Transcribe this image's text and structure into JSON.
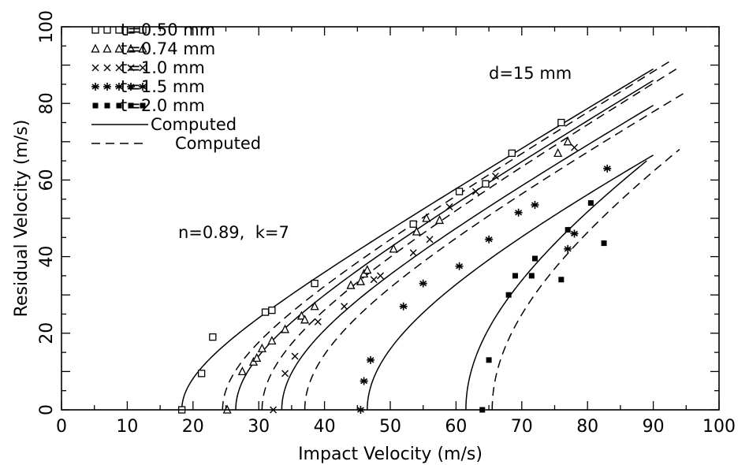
{
  "chart_data": {
    "type": "scatter",
    "xlabel": "Impact Velocity (m/s)",
    "ylabel": "Residual Velocity (m/s)",
    "xlim": [
      0,
      100
    ],
    "ylim": [
      0,
      100
    ],
    "xticks": [
      0,
      10,
      20,
      30,
      40,
      50,
      60,
      70,
      80,
      90,
      100
    ],
    "yticks": [
      0,
      20,
      40,
      60,
      80,
      100
    ],
    "grid": false,
    "legend_position": "top-left",
    "annotations": [
      "d=15 mm",
      "n=0.89,  k=7"
    ],
    "series": [
      {
        "name": "t=0.50  mm",
        "marker": "open-square",
        "points": [
          [
            18.3,
            0
          ],
          [
            21.3,
            9.5
          ],
          [
            23,
            19
          ],
          [
            31,
            25.5
          ],
          [
            32,
            26
          ],
          [
            38.5,
            33
          ],
          [
            53.5,
            48.5
          ],
          [
            60.5,
            57
          ],
          [
            64.5,
            59
          ],
          [
            68.5,
            67
          ],
          [
            76,
            75
          ]
        ]
      },
      {
        "name": "t=0.74  mm",
        "marker": "open-triangle",
        "points": [
          [
            25.2,
            0
          ],
          [
            27.5,
            10
          ],
          [
            29.2,
            12.5
          ],
          [
            29.7,
            13.5
          ],
          [
            30.5,
            16
          ],
          [
            32,
            18
          ],
          [
            34,
            21
          ],
          [
            36.5,
            24.5
          ],
          [
            37,
            23.5
          ],
          [
            38.5,
            27
          ],
          [
            44,
            32.5
          ],
          [
            45.5,
            33.5
          ],
          [
            46,
            35.5
          ],
          [
            46.5,
            36.5
          ],
          [
            50.5,
            42
          ],
          [
            54,
            46.5
          ],
          [
            55.5,
            50
          ],
          [
            57.5,
            49.5
          ],
          [
            75.5,
            67
          ],
          [
            77,
            70
          ]
        ]
      },
      {
        "name": "t=1.0   mm",
        "marker": "x",
        "points": [
          [
            32.2,
            0
          ],
          [
            34,
            9.5
          ],
          [
            35.5,
            14
          ],
          [
            39,
            23
          ],
          [
            43,
            27
          ],
          [
            47.5,
            34
          ],
          [
            48.5,
            35
          ],
          [
            53.5,
            41
          ],
          [
            56,
            44.5
          ],
          [
            59,
            53
          ],
          [
            63,
            57
          ],
          [
            66,
            61
          ],
          [
            78,
            68.5
          ]
        ]
      },
      {
        "name": "t=1.5   mm",
        "marker": "asterisk",
        "points": [
          [
            45.5,
            0
          ],
          [
            46,
            7.5
          ],
          [
            47,
            13
          ],
          [
            52,
            27
          ],
          [
            55,
            33
          ],
          [
            60.5,
            37.5
          ],
          [
            65,
            44.5
          ],
          [
            69.5,
            51.5
          ],
          [
            72,
            53.5
          ],
          [
            78,
            46
          ],
          [
            77,
            42
          ],
          [
            83,
            63
          ]
        ]
      },
      {
        "name": "t=2.0   mm",
        "marker": "filled-square",
        "points": [
          [
            64,
            0
          ],
          [
            65,
            13
          ],
          [
            68,
            30
          ],
          [
            69,
            35
          ],
          [
            71.5,
            35
          ],
          [
            72,
            39.5
          ],
          [
            76,
            34
          ],
          [
            77,
            47
          ],
          [
            80.5,
            54
          ],
          [
            82.5,
            43.5
          ]
        ]
      },
      {
        "name": "Computed",
        "type": "line",
        "style": "solid"
      },
      {
        "name": "Computed",
        "type": "line",
        "style": "dashed"
      }
    ],
    "curves": [
      {
        "style": "solid",
        "v_ballistic": 18.3,
        "v_end": 90,
        "r_end": 89
      },
      {
        "style": "solid",
        "v_ballistic": 26.5,
        "v_end": 90,
        "r_end": 86
      },
      {
        "style": "solid",
        "v_ballistic": 33.5,
        "v_end": 90,
        "r_end": 79.5
      },
      {
        "style": "solid",
        "v_ballistic": 46.5,
        "v_end": 90,
        "r_end": 66.5
      },
      {
        "style": "solid",
        "v_ballistic": 61.5,
        "v_end": 89,
        "r_end": 65
      },
      {
        "style": "dashed",
        "v_ballistic": 24.5,
        "v_end": 93,
        "r_end": 91.5
      },
      {
        "style": "dashed",
        "v_ballistic": 30.5,
        "v_end": 94,
        "r_end": 89.5
      },
      {
        "style": "dashed",
        "v_ballistic": 37,
        "v_end": 95,
        "r_end": 83
      },
      {
        "style": "dashed",
        "v_ballistic": 65.5,
        "v_end": 94,
        "r_end": 68
      }
    ]
  }
}
